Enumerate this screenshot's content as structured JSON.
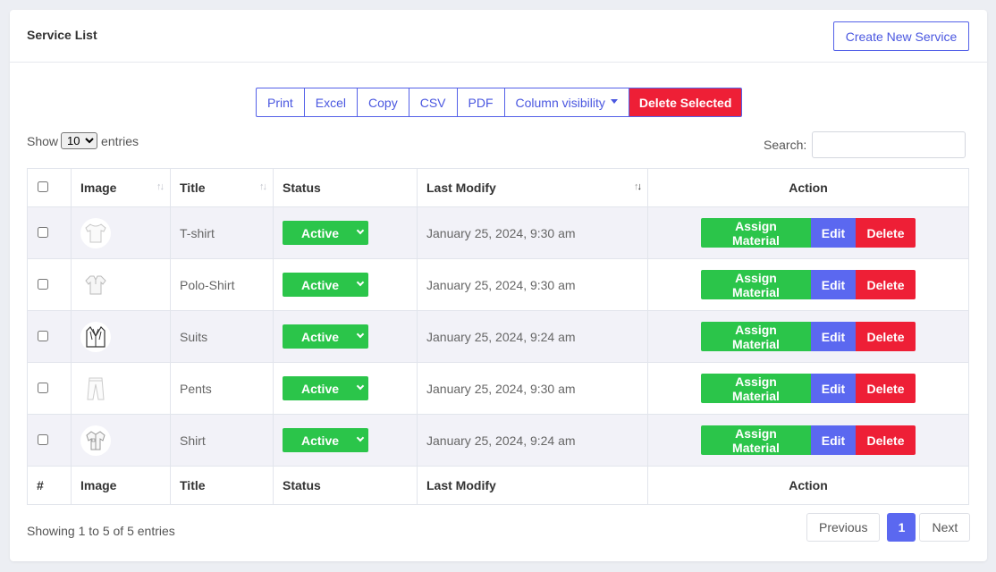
{
  "header": {
    "title": "Service List",
    "create_label": "Create New Service"
  },
  "toolbar": {
    "buttons": [
      "Print",
      "Excel",
      "Copy",
      "CSV",
      "PDF",
      "Column visibility"
    ],
    "delete_selected": "Delete Selected"
  },
  "length": {
    "show": "Show",
    "value": "10",
    "entries": "entries"
  },
  "search": {
    "label": "Search:",
    "value": ""
  },
  "columns": {
    "image": "Image",
    "title": "Title",
    "status": "Status",
    "last_modify": "Last Modify",
    "action": "Action"
  },
  "footer_columns": {
    "num": "#",
    "image": "Image",
    "title": "Title",
    "status": "Status",
    "last_modify": "Last Modify",
    "action": "Action"
  },
  "rows": [
    {
      "title": "T-shirt",
      "status": "Active",
      "modified": "January 25, 2024, 9:30 am",
      "icon": "tshirt-icon"
    },
    {
      "title": "Polo-Shirt",
      "status": "Active",
      "modified": "January 25, 2024, 9:30 am",
      "icon": "polo-shirt-icon"
    },
    {
      "title": "Suits",
      "status": "Active",
      "modified": "January 25, 2024, 9:24 am",
      "icon": "suit-icon"
    },
    {
      "title": "Pents",
      "status": "Active",
      "modified": "January 25, 2024, 9:30 am",
      "icon": "pants-icon"
    },
    {
      "title": "Shirt",
      "status": "Active",
      "modified": "January 25, 2024, 9:24 am",
      "icon": "shirt-icon"
    }
  ],
  "actions": {
    "assign": "Assign Material",
    "edit": "Edit",
    "delete": "Delete"
  },
  "info": "Showing 1 to 5 of 5 entries",
  "pagination": {
    "previous": "Previous",
    "page": "1",
    "next": "Next"
  },
  "colors": {
    "primary": "#5b68f0",
    "success": "#2bc54a",
    "danger": "#ee1f36"
  }
}
